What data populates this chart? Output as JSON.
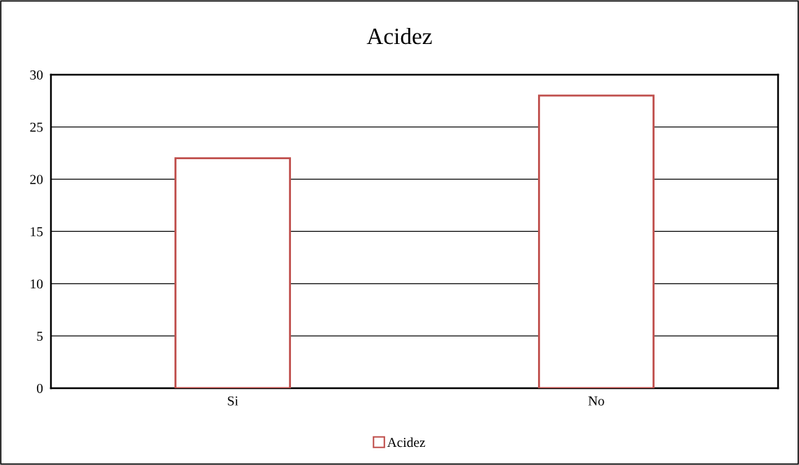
{
  "chart_data": {
    "type": "bar",
    "title": "Acidez",
    "categories": [
      "Si",
      "No"
    ],
    "series": [
      {
        "name": "Acidez",
        "color": "#c0504d",
        "values": [
          22,
          28
        ]
      }
    ],
    "ylim": [
      0,
      30
    ],
    "yticks": [
      0,
      5,
      10,
      15,
      20,
      25,
      30
    ],
    "grid": "y",
    "legend": "bottom"
  }
}
